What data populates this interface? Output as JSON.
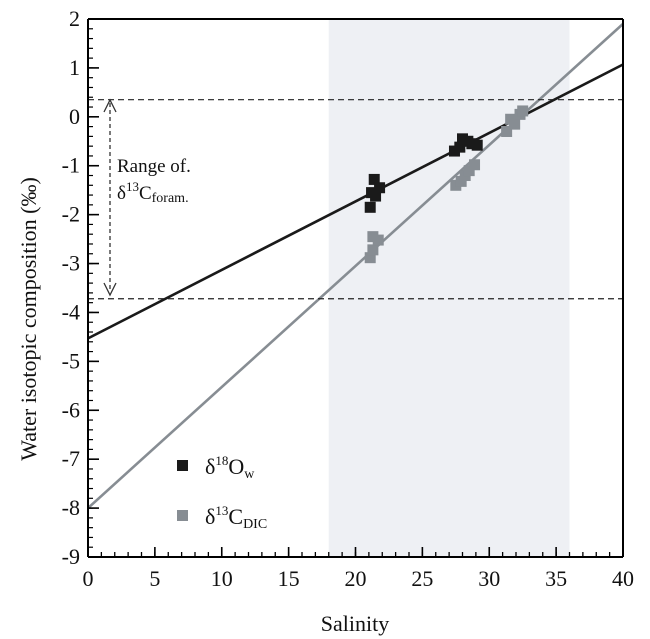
{
  "chart_data": {
    "type": "scatter",
    "xlabel": "Salinity",
    "ylabel": "Water isotopic composition (‰)",
    "xlim": [
      0,
      40
    ],
    "ylim": [
      -9,
      2
    ],
    "xticks": [
      0,
      5,
      10,
      15,
      20,
      25,
      30,
      35,
      40
    ],
    "yticks": [
      -9,
      -8,
      -7,
      -6,
      -5,
      -4,
      -3,
      -2,
      -1,
      0,
      1,
      2
    ],
    "minor_x_step": 1,
    "minor_y_step": 0.2,
    "grid": false,
    "legend_position": "bottom-left",
    "shaded_x_range": [
      18,
      36
    ],
    "shaded_color": "#eef0f4",
    "hlines": [
      0.35,
      -3.72
    ],
    "annotation": {
      "line1": "Range of.",
      "delta": "δ",
      "sup": "13",
      "main": "C",
      "sub": "foram."
    },
    "series": [
      {
        "name": "δ18Ow",
        "name_parts": {
          "delta": "δ",
          "sup": "18",
          "main": "O",
          "sub": "w"
        },
        "color": "#1a1a1a",
        "points": [
          [
            21.1,
            -1.85
          ],
          [
            21.2,
            -1.55
          ],
          [
            21.4,
            -1.28
          ],
          [
            21.5,
            -1.62
          ],
          [
            21.8,
            -1.45
          ],
          [
            27.4,
            -0.7
          ],
          [
            27.8,
            -0.62
          ],
          [
            28.0,
            -0.45
          ],
          [
            28.4,
            -0.5
          ],
          [
            28.7,
            -0.55
          ],
          [
            29.1,
            -0.58
          ]
        ],
        "fit": {
          "slope": 0.14,
          "intercept": -4.53
        }
      },
      {
        "name": "δ13CDIC",
        "name_parts": {
          "delta": "δ",
          "sup": "13",
          "main": "C",
          "sub": "DIC"
        },
        "color": "#878d93",
        "points": [
          [
            21.1,
            -2.88
          ],
          [
            21.3,
            -2.72
          ],
          [
            21.3,
            -2.45
          ],
          [
            21.7,
            -2.52
          ],
          [
            27.5,
            -1.4
          ],
          [
            27.9,
            -1.32
          ],
          [
            28.2,
            -1.2
          ],
          [
            28.5,
            -1.1
          ],
          [
            28.9,
            -0.98
          ],
          [
            31.3,
            -0.3
          ],
          [
            31.6,
            -0.05
          ],
          [
            31.9,
            -0.15
          ],
          [
            32.3,
            0.05
          ],
          [
            32.5,
            0.12
          ]
        ],
        "fit": {
          "slope": 0.2475,
          "intercept": -8.0
        }
      }
    ]
  }
}
